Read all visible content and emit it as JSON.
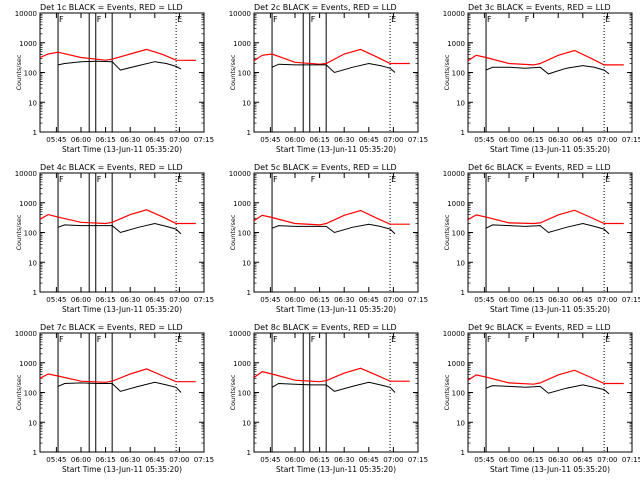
{
  "figure": {
    "background": "#ffffff",
    "colors": {
      "events": "#000000",
      "lld": "#ff0000",
      "axes": "#000000"
    }
  },
  "chart_data": [
    {
      "type": "line",
      "title": "Det 1c BLACK = Events, RED = LLD",
      "xlabel": "Start Time (13-Jun-11 05:35:20)",
      "ylabel": "Counts/sec",
      "xlim": [
        "05:35",
        "07:15"
      ],
      "xtick_labels": [
        "05:45",
        "06:00",
        "06:15",
        "06:30",
        "06:45",
        "07:00",
        "07:15"
      ],
      "yscale": "log",
      "ylim": [
        1,
        10000
      ],
      "ytick_labels": [
        "1",
        "10",
        "100",
        "1000",
        "10000"
      ],
      "markers": [
        {
          "label": "F",
          "x": "05:46"
        },
        {
          "label": "F",
          "x": "06:09"
        },
        {
          "label": "E",
          "x": "06:58"
        }
      ],
      "vlines_solid": [
        "05:46",
        "06:05",
        "06:09",
        "06:19"
      ],
      "vlines_dotted": [
        "06:58"
      ],
      "series": [
        {
          "color": "#ff0000",
          "x": [
            "05:35",
            "05:40",
            "05:46",
            "06:00",
            "06:15",
            "06:19",
            "06:30",
            "06:40",
            "06:50",
            "06:58",
            "07:10"
          ],
          "y": [
            320,
            420,
            480,
            320,
            260,
            280,
            420,
            600,
            400,
            260,
            255
          ]
        },
        {
          "color": "#000000",
          "x": [
            "05:46",
            "05:50",
            "06:00",
            "06:10",
            "06:19",
            "06:24",
            "06:35",
            "06:45",
            "06:52",
            "06:58",
            "07:01"
          ],
          "y": [
            180,
            200,
            230,
            240,
            230,
            120,
            170,
            230,
            200,
            160,
            130
          ]
        }
      ]
    },
    {
      "type": "line",
      "title": "Det 2c BLACK = Events, RED = LLD",
      "xlabel": "Start Time (13-Jun-11 05:35:20)",
      "ylabel": "Counts/sec",
      "xlim": [
        "05:35",
        "07:15"
      ],
      "xtick_labels": [
        "05:45",
        "06:00",
        "06:15",
        "06:30",
        "06:45",
        "07:00",
        "07:15"
      ],
      "yscale": "log",
      "ylim": [
        1,
        10000
      ],
      "ytick_labels": [
        "1",
        "10",
        "100",
        "1000",
        "10000"
      ],
      "markers": [
        {
          "label": "F",
          "x": "05:46"
        },
        {
          "label": "F",
          "x": "06:09"
        },
        {
          "label": "E",
          "x": "06:58"
        }
      ],
      "vlines_solid": [
        "05:46",
        "06:05",
        "06:09",
        "06:19"
      ],
      "vlines_dotted": [
        "06:58"
      ],
      "series": [
        {
          "color": "#ff0000",
          "x": [
            "05:35",
            "05:40",
            "05:46",
            "06:00",
            "06:15",
            "06:19",
            "06:30",
            "06:40",
            "06:50",
            "06:58",
            "07:10"
          ],
          "y": [
            250,
            380,
            420,
            220,
            190,
            200,
            420,
            600,
            330,
            200,
            200
          ]
        },
        {
          "color": "#000000",
          "x": [
            "05:46",
            "05:50",
            "06:00",
            "06:10",
            "06:19",
            "06:24",
            "06:35",
            "06:45",
            "06:52",
            "06:58",
            "07:01"
          ],
          "y": [
            150,
            190,
            180,
            180,
            180,
            100,
            150,
            200,
            170,
            140,
            100
          ]
        }
      ]
    },
    {
      "type": "line",
      "title": "Det 3c BLACK = Events, RED = LLD",
      "xlabel": "Start Time (13-Jun-11 05:35:20)",
      "ylabel": "Counts/sec",
      "xlim": [
        "05:35",
        "07:15"
      ],
      "xtick_labels": [
        "05:45",
        "06:00",
        "06:15",
        "06:30",
        "06:45",
        "07:00",
        "07:15"
      ],
      "yscale": "log",
      "ylim": [
        1,
        10000
      ],
      "ytick_labels": [
        "1",
        "10",
        "100",
        "1000",
        "10000"
      ],
      "markers": [
        {
          "label": "F",
          "x": "05:46"
        },
        {
          "label": "F",
          "x": "06:09"
        },
        {
          "label": "E",
          "x": "06:58"
        }
      ],
      "vlines_solid": [
        "05:46"
      ],
      "vlines_dotted": [
        "06:58"
      ],
      "series": [
        {
          "color": "#ff0000",
          "x": [
            "05:35",
            "05:40",
            "05:46",
            "06:00",
            "06:15",
            "06:19",
            "06:30",
            "06:40",
            "06:50",
            "06:58",
            "07:10"
          ],
          "y": [
            250,
            380,
            320,
            200,
            180,
            200,
            380,
            550,
            300,
            180,
            180
          ]
        },
        {
          "color": "#000000",
          "x": [
            "05:46",
            "05:50",
            "06:00",
            "06:10",
            "06:19",
            "06:24",
            "06:35",
            "06:45",
            "06:52",
            "06:58",
            "07:01"
          ],
          "y": [
            120,
            150,
            150,
            140,
            150,
            90,
            140,
            170,
            150,
            120,
            90
          ]
        }
      ]
    },
    {
      "type": "line",
      "title": "Det 4c BLACK = Events, RED = LLD",
      "xlabel": "Start Time (13-Jun-11 05:35:20)",
      "ylabel": "Counts/sec",
      "xlim": [
        "05:35",
        "07:15"
      ],
      "xtick_labels": [
        "05:45",
        "06:00",
        "06:15",
        "06:30",
        "06:45",
        "07:00",
        "07:15"
      ],
      "yscale": "log",
      "ylim": [
        1,
        10000
      ],
      "ytick_labels": [
        "1",
        "10",
        "100",
        "1000",
        "10000"
      ],
      "markers": [
        {
          "label": "F",
          "x": "05:46"
        },
        {
          "label": "F",
          "x": "06:09"
        },
        {
          "label": "E",
          "x": "06:58"
        }
      ],
      "vlines_solid": [
        "05:46",
        "06:05",
        "06:09",
        "06:19"
      ],
      "vlines_dotted": [
        "06:58"
      ],
      "series": [
        {
          "color": "#ff0000",
          "x": [
            "05:35",
            "05:40",
            "05:46",
            "06:00",
            "06:15",
            "06:19",
            "06:30",
            "06:40",
            "06:50",
            "06:58",
            "07:10"
          ],
          "y": [
            280,
            400,
            330,
            220,
            200,
            220,
            400,
            580,
            330,
            200,
            200
          ]
        },
        {
          "color": "#000000",
          "x": [
            "05:46",
            "05:50",
            "06:00",
            "06:10",
            "06:19",
            "06:24",
            "06:35",
            "06:45",
            "06:52",
            "06:58",
            "07:01"
          ],
          "y": [
            150,
            180,
            170,
            170,
            170,
            100,
            150,
            200,
            160,
            130,
            90
          ]
        }
      ]
    },
    {
      "type": "line",
      "title": "Det 5c BLACK = Events, RED = LLD",
      "xlabel": "Start Time (13-Jun-11 05:35:20)",
      "ylabel": "Counts/sec",
      "xlim": [
        "05:35",
        "07:15"
      ],
      "xtick_labels": [
        "05:45",
        "06:00",
        "06:15",
        "06:30",
        "06:45",
        "07:00",
        "07:15"
      ],
      "yscale": "log",
      "ylim": [
        1,
        10000
      ],
      "ytick_labels": [
        "1",
        "10",
        "100",
        "1000",
        "10000"
      ],
      "markers": [
        {
          "label": "F",
          "x": "05:46"
        },
        {
          "label": "F",
          "x": "06:09"
        },
        {
          "label": "E",
          "x": "06:58"
        }
      ],
      "vlines_solid": [
        "05:46"
      ],
      "vlines_dotted": [
        "06:58"
      ],
      "series": [
        {
          "color": "#ff0000",
          "x": [
            "05:35",
            "05:40",
            "05:46",
            "06:00",
            "06:15",
            "06:19",
            "06:30",
            "06:40",
            "06:50",
            "06:58",
            "07:10"
          ],
          "y": [
            250,
            380,
            320,
            200,
            180,
            200,
            380,
            550,
            300,
            190,
            190
          ]
        },
        {
          "color": "#000000",
          "x": [
            "05:46",
            "05:50",
            "06:00",
            "06:10",
            "06:19",
            "06:24",
            "06:35",
            "06:45",
            "06:52",
            "06:58",
            "07:01"
          ],
          "y": [
            140,
            170,
            160,
            160,
            160,
            100,
            150,
            190,
            160,
            130,
            90
          ]
        }
      ]
    },
    {
      "type": "line",
      "title": "Det 6c BLACK = Events, RED = LLD",
      "xlabel": "Start Time (13-Jun-11 05:35:20)",
      "ylabel": "Counts/sec",
      "xlim": [
        "05:35",
        "07:15"
      ],
      "xtick_labels": [
        "05:45",
        "06:00",
        "06:15",
        "06:30",
        "06:45",
        "07:00",
        "07:15"
      ],
      "yscale": "log",
      "ylim": [
        1,
        10000
      ],
      "ytick_labels": [
        "1",
        "10",
        "100",
        "1000",
        "10000"
      ],
      "markers": [
        {
          "label": "F",
          "x": "05:46"
        },
        {
          "label": "F",
          "x": "06:09"
        },
        {
          "label": "E",
          "x": "06:58"
        }
      ],
      "vlines_solid": [
        "05:46"
      ],
      "vlines_dotted": [
        "06:58"
      ],
      "series": [
        {
          "color": "#ff0000",
          "x": [
            "05:35",
            "05:40",
            "05:46",
            "06:00",
            "06:15",
            "06:19",
            "06:30",
            "06:40",
            "06:50",
            "06:58",
            "07:10"
          ],
          "y": [
            270,
            390,
            330,
            210,
            200,
            210,
            390,
            560,
            320,
            200,
            200
          ]
        },
        {
          "color": "#000000",
          "x": [
            "05:46",
            "05:50",
            "06:00",
            "06:10",
            "06:19",
            "06:24",
            "06:35",
            "06:45",
            "06:52",
            "06:58",
            "07:01"
          ],
          "y": [
            140,
            180,
            170,
            160,
            170,
            100,
            150,
            200,
            160,
            130,
            90
          ]
        }
      ]
    },
    {
      "type": "line",
      "title": "Det 7c BLACK = Events, RED = LLD",
      "xlabel": "Start Time (13-Jun-11 05:35:20)",
      "ylabel": "Counts/sec",
      "xlim": [
        "05:35",
        "07:15"
      ],
      "xtick_labels": [
        "05:45",
        "06:00",
        "06:15",
        "06:30",
        "06:45",
        "07:00",
        "07:15"
      ],
      "yscale": "log",
      "ylim": [
        1,
        10000
      ],
      "ytick_labels": [
        "1",
        "10",
        "100",
        "1000",
        "10000"
      ],
      "markers": [
        {
          "label": "F",
          "x": "05:46"
        },
        {
          "label": "F",
          "x": "06:09"
        },
        {
          "label": "E",
          "x": "06:58"
        }
      ],
      "vlines_solid": [
        "05:46",
        "06:05",
        "06:09",
        "06:19"
      ],
      "vlines_dotted": [
        "06:58"
      ],
      "series": [
        {
          "color": "#ff0000",
          "x": [
            "05:35",
            "05:40",
            "05:46",
            "06:00",
            "06:15",
            "06:19",
            "06:30",
            "06:40",
            "06:50",
            "06:58",
            "07:10"
          ],
          "y": [
            300,
            420,
            360,
            240,
            220,
            240,
            420,
            620,
            360,
            230,
            230
          ]
        },
        {
          "color": "#000000",
          "x": [
            "05:46",
            "05:50",
            "06:00",
            "06:10",
            "06:19",
            "06:24",
            "06:35",
            "06:45",
            "06:52",
            "06:58",
            "07:01"
          ],
          "y": [
            160,
            200,
            210,
            200,
            200,
            110,
            160,
            220,
            180,
            150,
            100
          ]
        }
      ]
    },
    {
      "type": "line",
      "title": "Det 8c BLACK = Events, RED = LLD",
      "xlabel": "Start Time (13-Jun-11 05:35:20)",
      "ylabel": "Counts/sec",
      "xlim": [
        "05:35",
        "07:15"
      ],
      "xtick_labels": [
        "05:45",
        "06:00",
        "06:15",
        "06:30",
        "06:45",
        "07:00",
        "07:15"
      ],
      "yscale": "log",
      "ylim": [
        1,
        10000
      ],
      "ytick_labels": [
        "1",
        "10",
        "100",
        "1000",
        "10000"
      ],
      "markers": [
        {
          "label": "F",
          "x": "05:46"
        },
        {
          "label": "F",
          "x": "06:09"
        },
        {
          "label": "E",
          "x": "06:58"
        }
      ],
      "vlines_solid": [
        "05:46",
        "06:05",
        "06:09",
        "06:19"
      ],
      "vlines_dotted": [
        "06:58"
      ],
      "series": [
        {
          "color": "#ff0000",
          "x": [
            "05:35",
            "05:40",
            "05:46",
            "06:00",
            "06:15",
            "06:19",
            "06:30",
            "06:40",
            "06:50",
            "06:58",
            "07:10"
          ],
          "y": [
            320,
            500,
            420,
            260,
            230,
            250,
            450,
            650,
            380,
            240,
            240
          ]
        },
        {
          "color": "#000000",
          "x": [
            "05:46",
            "05:50",
            "06:00",
            "06:10",
            "06:19",
            "06:24",
            "06:35",
            "06:45",
            "06:52",
            "06:58",
            "07:01"
          ],
          "y": [
            150,
            200,
            190,
            180,
            180,
            110,
            160,
            220,
            180,
            150,
            100
          ]
        }
      ]
    },
    {
      "type": "line",
      "title": "Det 9c BLACK = Events, RED = LLD",
      "xlabel": "Start Time (13-Jun-11 05:35:20)",
      "ylabel": "Counts/sec",
      "xlim": [
        "05:35",
        "07:15"
      ],
      "xtick_labels": [
        "05:45",
        "06:00",
        "06:15",
        "06:30",
        "06:45",
        "07:00",
        "07:15"
      ],
      "yscale": "log",
      "ylim": [
        1,
        10000
      ],
      "ytick_labels": [
        "1",
        "10",
        "100",
        "1000",
        "10000"
      ],
      "markers": [
        {
          "label": "F",
          "x": "05:46"
        },
        {
          "label": "F",
          "x": "06:09"
        },
        {
          "label": "E",
          "x": "06:58"
        }
      ],
      "vlines_solid": [
        "05:46"
      ],
      "vlines_dotted": [
        "06:58"
      ],
      "series": [
        {
          "color": "#ff0000",
          "x": [
            "05:35",
            "05:40",
            "05:46",
            "06:00",
            "06:15",
            "06:19",
            "06:30",
            "06:40",
            "06:50",
            "06:58",
            "07:10"
          ],
          "y": [
            260,
            390,
            330,
            210,
            190,
            210,
            390,
            560,
            320,
            200,
            200
          ]
        },
        {
          "color": "#000000",
          "x": [
            "05:46",
            "05:50",
            "06:00",
            "06:10",
            "06:19",
            "06:24",
            "06:35",
            "06:45",
            "06:52",
            "06:58",
            "07:01"
          ],
          "y": [
            140,
            170,
            160,
            150,
            160,
            95,
            140,
            180,
            150,
            125,
            90
          ]
        }
      ]
    }
  ]
}
